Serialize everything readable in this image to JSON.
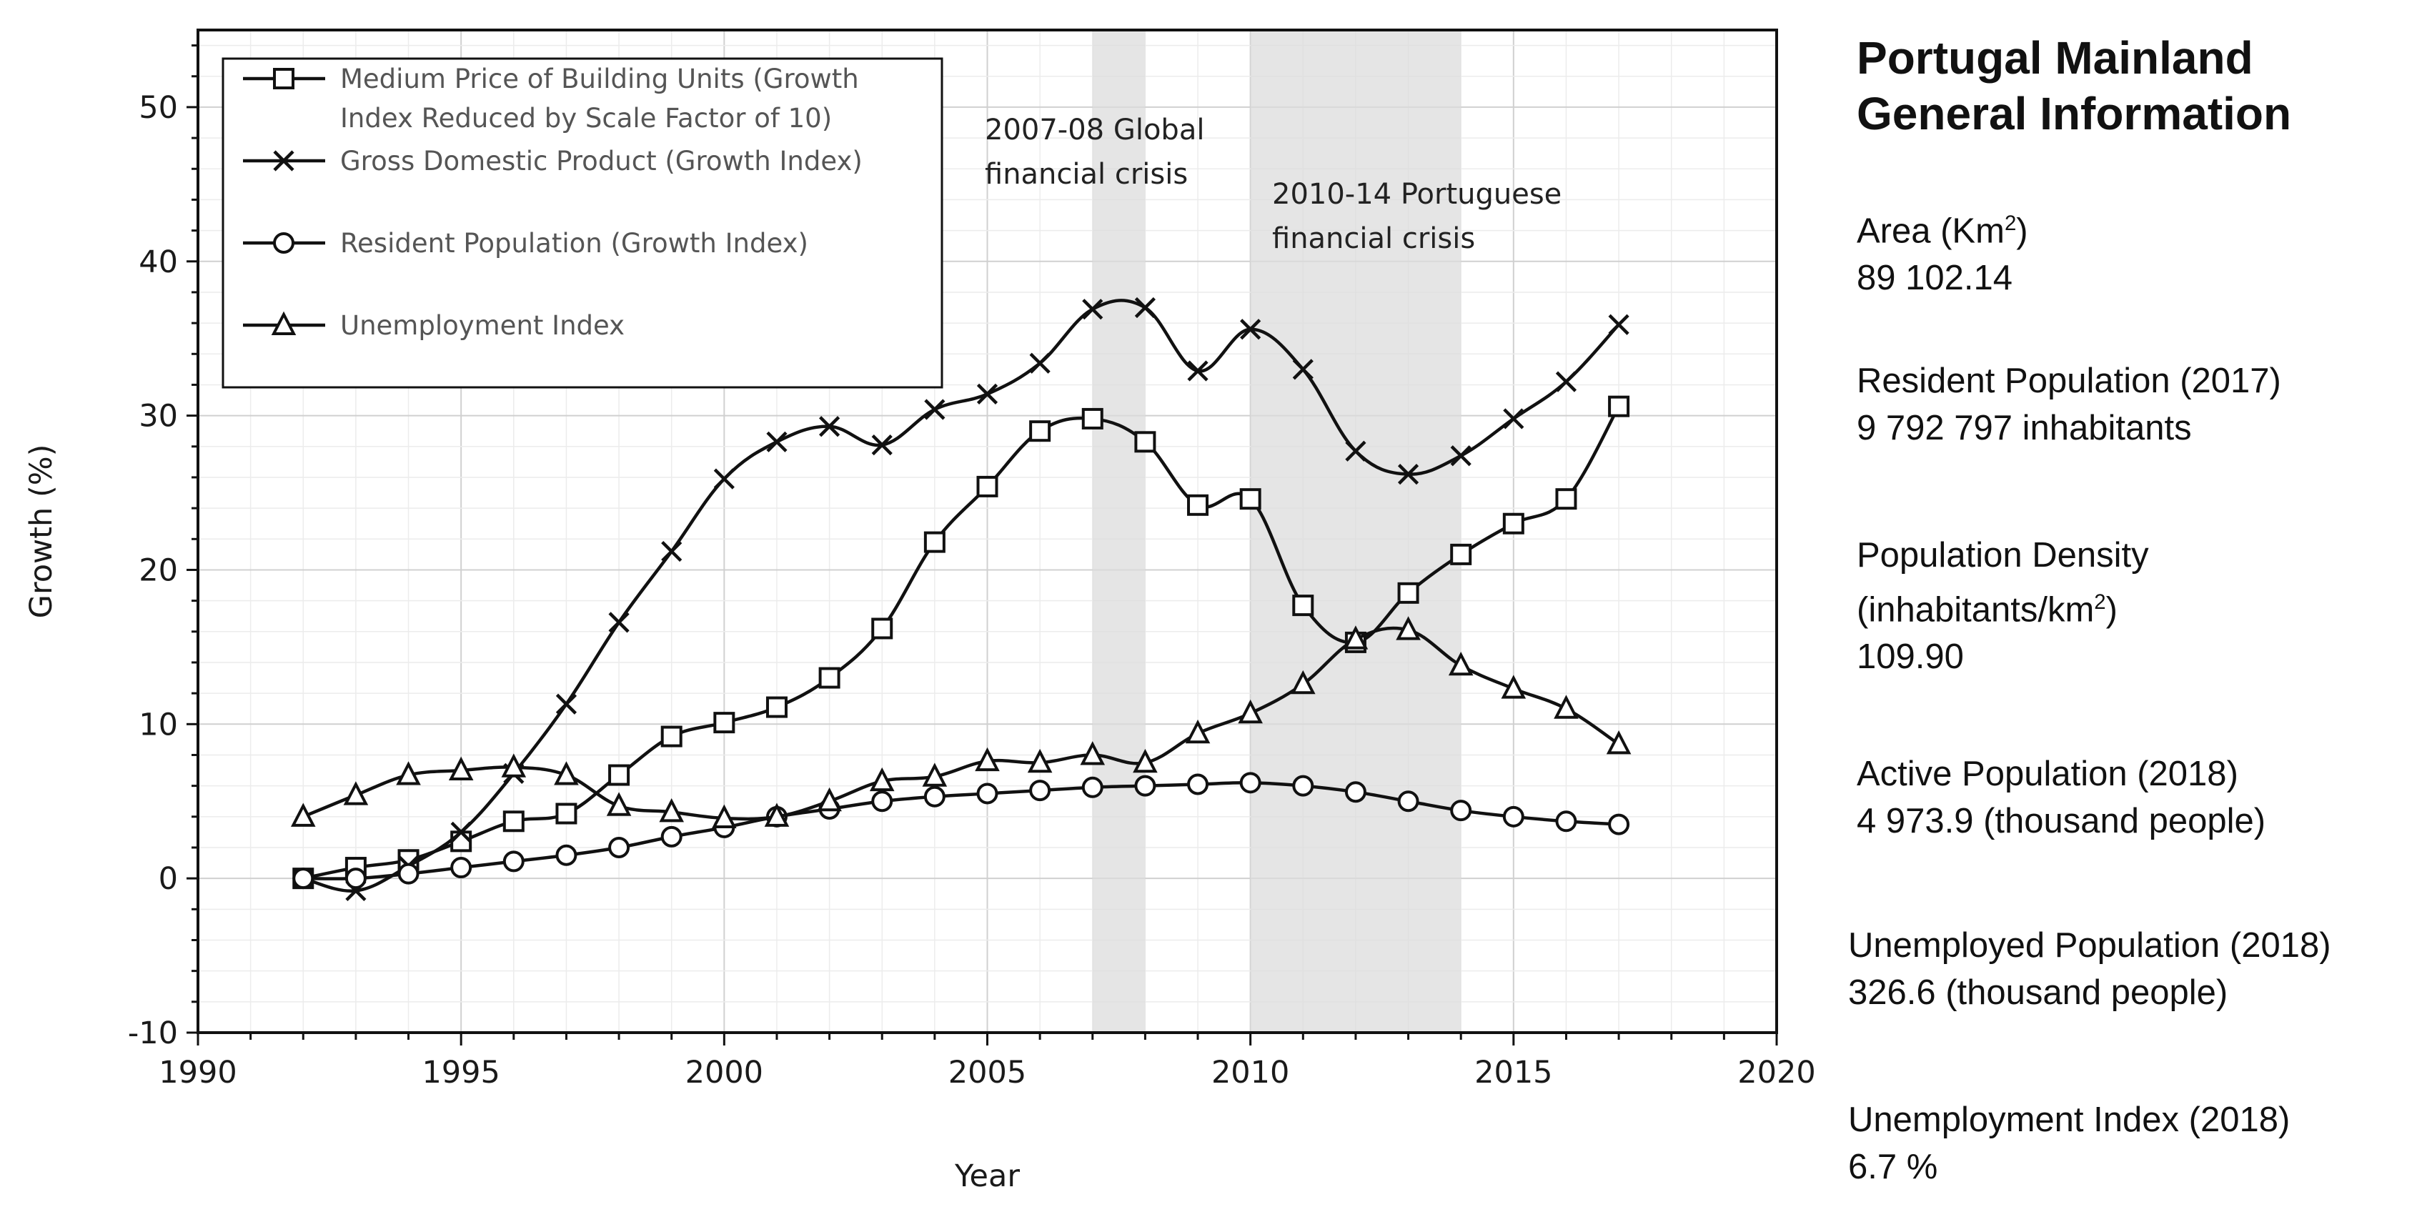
{
  "chart_data": {
    "type": "line",
    "title": "",
    "xlabel": "Year",
    "ylabel": "Growth (%)",
    "xlim": [
      1990,
      2020
    ],
    "ylim": [
      -10,
      55
    ],
    "xticks": [
      1990,
      1995,
      2000,
      2005,
      2010,
      2015,
      2020
    ],
    "yticks": [
      -10,
      0,
      10,
      20,
      30,
      40,
      50
    ],
    "grid": true,
    "legend_position": "top-left",
    "x": [
      1992,
      1993,
      1994,
      1995,
      1996,
      1997,
      1998,
      1999,
      2000,
      2001,
      2002,
      2003,
      2004,
      2005,
      2006,
      2007,
      2008,
      2009,
      2010,
      2011,
      2012,
      2013,
      2014,
      2015,
      2016,
      2017
    ],
    "series": [
      {
        "name": "Medium Price of Building Units (Growth Index Reduced by Scale Factor of 10)",
        "legend_lines": [
          "Medium Price of Building Units (Growth",
          "Index Reduced by Scale Factor of 10)"
        ],
        "marker": "square",
        "values": [
          0,
          0.7,
          1.2,
          2.4,
          3.7,
          4.2,
          6.7,
          9.2,
          10.1,
          11.1,
          13.0,
          16.2,
          21.8,
          25.4,
          29.0,
          29.8,
          28.3,
          24.2,
          24.6,
          17.7,
          15.3,
          18.5,
          21.0,
          23.0,
          24.6,
          30.6
        ]
      },
      {
        "name": "Gross Domestic Product (Growth Index)",
        "legend_lines": [
          "Gross Domestic Product (Growth Index)"
        ],
        "marker": "x",
        "values": [
          0,
          -0.8,
          0.8,
          3.0,
          6.8,
          11.3,
          16.6,
          21.2,
          25.9,
          28.3,
          29.3,
          28.1,
          30.4,
          31.4,
          33.4,
          36.9,
          37.0,
          32.9,
          35.6,
          33.0,
          27.7,
          26.2,
          27.4,
          29.8,
          32.2,
          35.9
        ]
      },
      {
        "name": "Resident Population (Growth Index)",
        "legend_lines": [
          "Resident Population (Growth Index)"
        ],
        "marker": "circle",
        "values": [
          0,
          0,
          0.3,
          0.7,
          1.1,
          1.5,
          2.0,
          2.7,
          3.3,
          4.0,
          4.5,
          5.0,
          5.3,
          5.5,
          5.7,
          5.9,
          6.0,
          6.1,
          6.2,
          6.0,
          5.6,
          5.0,
          4.4,
          4.0,
          3.7,
          3.5
        ]
      },
      {
        "name": "Unemployment Index",
        "legend_lines": [
          "Unemployment Index"
        ],
        "marker": "triangle",
        "values": [
          4.0,
          5.4,
          6.7,
          7.0,
          7.2,
          6.7,
          4.7,
          4.3,
          3.9,
          4.0,
          5.0,
          6.3,
          6.6,
          7.6,
          7.5,
          8.0,
          7.5,
          9.4,
          10.7,
          12.6,
          15.5,
          16.1,
          13.8,
          12.3,
          11.0,
          8.7
        ]
      }
    ],
    "shaded_periods": [
      {
        "start": 2007,
        "end": 2008,
        "label_lines": [
          "2007-08 Global",
          "financial crisis"
        ]
      },
      {
        "start": 2010,
        "end": 2014,
        "label_lines": [
          "2010-14 Portuguese",
          "financial crisis"
        ]
      }
    ]
  },
  "sidebar": {
    "title_lines": [
      "Portugal Mainland",
      "General Information"
    ],
    "items": [
      {
        "label": "Area (Km",
        "sup": "2",
        "label_end": ")",
        "value": "89 102.14"
      },
      {
        "label": "Resident Population (2017)",
        "value": "9 792 797 inhabitants"
      },
      {
        "label": "Population Density",
        "label2": "(inhabitants/km",
        "sup": "2",
        "label_end": ")",
        "value": "109.90"
      },
      {
        "label": "Active Population (2018)",
        "value": "4 973.9 (thousand people)"
      },
      {
        "label": "Unemployed Population (2018)",
        "value": "326.6 (thousand people)"
      },
      {
        "label": "Unemployment Index (2018)",
        "value": "6.7 %"
      }
    ]
  }
}
